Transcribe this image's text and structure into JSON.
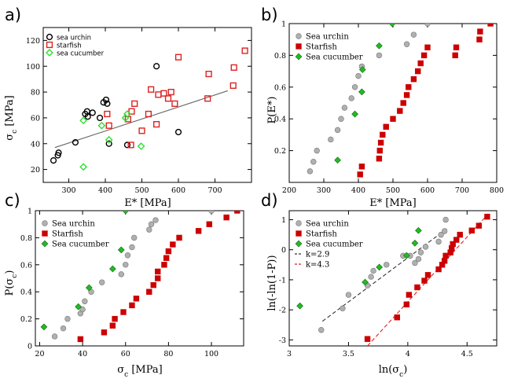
{
  "chart_data": [
    {
      "panel": "a)",
      "type": "scatter",
      "xlabel": "E* [MPa]",
      "ylabel": "σc [MPa]",
      "xlim": [
        230,
        800
      ],
      "ylim": [
        10,
        130
      ],
      "xticks": [
        300,
        400,
        500,
        600,
        700
      ],
      "yticks": [
        20,
        40,
        60,
        80,
        100,
        120
      ],
      "legend_position": "top-left",
      "legend_style": "small",
      "fit_line": {
        "x": [
          262,
          735
        ],
        "y": [
          37,
          81
        ],
        "color": "#666666",
        "dash": false
      },
      "series": [
        {
          "name": "sea urchin",
          "marker": "circle-open",
          "color": "#000000",
          "x": [
            258,
            270,
            272,
            318,
            345,
            350,
            352,
            365,
            385,
            395,
            402,
            405,
            410,
            460,
            540,
            600
          ],
          "y": [
            27,
            31,
            33,
            41,
            63,
            65,
            61,
            64,
            60,
            72,
            74,
            71,
            40,
            39,
            100,
            49
          ]
        },
        {
          "name": "starfish",
          "marker": "square-open",
          "color": "#dd2222",
          "x": [
            405,
            410,
            462,
            470,
            472,
            480,
            500,
            518,
            525,
            540,
            545,
            560,
            572,
            580,
            590,
            600,
            680,
            683,
            750,
            752,
            782
          ],
          "y": [
            63,
            54,
            59,
            39,
            65,
            71,
            50,
            63,
            82,
            55,
            78,
            79,
            75,
            80,
            71,
            107,
            75,
            94,
            85,
            99,
            112
          ]
        },
        {
          "name": "sea cucumber",
          "marker": "diamond-open",
          "color": "#33dd33",
          "x": [
            340,
            340,
            390,
            410,
            455,
            460,
            498
          ],
          "y": [
            22,
            58,
            54,
            43,
            60,
            63,
            38
          ]
        }
      ]
    },
    {
      "panel": "b)",
      "type": "scatter",
      "xlabel": "E* [MPa]",
      "ylabel": "P(E*)",
      "xlim": [
        200,
        800
      ],
      "ylim": [
        0,
        1
      ],
      "xticks": [
        200,
        300,
        400,
        500,
        600,
        700,
        800
      ],
      "yticks": [
        0.2,
        0.4,
        0.6,
        0.8,
        1
      ],
      "legend_position": "top-left",
      "legend_style": "large",
      "series": [
        {
          "name": "Sea urchin",
          "marker": "circle-filled",
          "color": "#b0b0b0",
          "x": [
            260,
            270,
            280,
            320,
            340,
            350,
            360,
            380,
            390,
            400,
            410,
            460,
            540,
            560,
            600
          ],
          "y": [
            0.07,
            0.13,
            0.2,
            0.27,
            0.33,
            0.4,
            0.47,
            0.53,
            0.6,
            0.67,
            0.73,
            0.8,
            0.87,
            0.93,
            1.0
          ]
        },
        {
          "name": "Starfish",
          "marker": "square-filled",
          "color": "#cc0000",
          "x": [
            405,
            410,
            460,
            462,
            465,
            470,
            480,
            500,
            520,
            530,
            540,
            545,
            560,
            572,
            580,
            590,
            600,
            680,
            683,
            750,
            752,
            782
          ],
          "y": [
            0.05,
            0.1,
            0.15,
            0.2,
            0.25,
            0.3,
            0.35,
            0.4,
            0.45,
            0.5,
            0.55,
            0.6,
            0.65,
            0.7,
            0.75,
            0.8,
            0.85,
            0.8,
            0.85,
            0.9,
            0.95,
            1.0
          ]
        },
        {
          "name": "Sea cucumber",
          "marker": "diamond-filled",
          "color": "#22bb22",
          "x": [
            340,
            390,
            410,
            412,
            460,
            498
          ],
          "y": [
            0.14,
            0.43,
            0.57,
            0.71,
            0.86,
            1.0
          ]
        }
      ]
    },
    {
      "panel": "c)",
      "type": "scatter",
      "xlabel": "σc [MPa]",
      "ylabel": "P(σc)",
      "xlim": [
        18,
        115
      ],
      "ylim": [
        0,
        1
      ],
      "xticks": [
        20,
        40,
        60,
        80,
        100
      ],
      "yticks": [
        0,
        0.2,
        0.4,
        0.6,
        0.8,
        1
      ],
      "legend_position": "top-left",
      "legend_style": "large",
      "series": [
        {
          "name": "Sea urchin",
          "marker": "circle-filled",
          "color": "#b0b0b0",
          "x": [
            27,
            31,
            33,
            39,
            40,
            41,
            44,
            49,
            58,
            60,
            61,
            63,
            64,
            71,
            72,
            74,
            100
          ],
          "y": [
            0.07,
            0.13,
            0.2,
            0.24,
            0.27,
            0.33,
            0.4,
            0.47,
            0.53,
            0.6,
            0.67,
            0.73,
            0.8,
            0.86,
            0.9,
            0.93,
            1.0
          ]
        },
        {
          "name": "Starfish",
          "marker": "square-filled",
          "color": "#cc0000",
          "x": [
            39,
            50,
            54,
            55,
            59,
            63,
            65,
            71,
            73,
            75,
            75,
            78,
            79,
            80,
            82,
            85,
            94,
            99,
            107,
            112
          ],
          "y": [
            0.05,
            0.1,
            0.15,
            0.2,
            0.25,
            0.3,
            0.35,
            0.4,
            0.45,
            0.5,
            0.55,
            0.6,
            0.65,
            0.7,
            0.75,
            0.8,
            0.85,
            0.9,
            0.95,
            1.0
          ]
        },
        {
          "name": "Sea cucumber",
          "marker": "diamond-filled",
          "color": "#22bb22",
          "x": [
            22,
            38,
            43,
            54,
            58,
            60
          ],
          "y": [
            0.14,
            0.29,
            0.43,
            0.57,
            0.71,
            1.0
          ]
        }
      ]
    },
    {
      "panel": "d)",
      "type": "scatter",
      "xlabel": "ln(σc)",
      "ylabel": "ln(-ln(1-P))",
      "xlim": [
        3.0,
        4.75
      ],
      "ylim": [
        -3.2,
        1.3
      ],
      "xticks": [
        3,
        3.5,
        4,
        4.5
      ],
      "yticks": [
        -3,
        -2,
        -1,
        0,
        1
      ],
      "legend_position": "top-left",
      "legend_style": "large",
      "lines": [
        {
          "name": "k=2.9",
          "color": "#333333",
          "x": [
            3.28,
            4.33
          ],
          "y": [
            -2.38,
            0.7
          ]
        },
        {
          "name": "k=4.3",
          "color": "#dd2222",
          "x": [
            3.66,
            4.68
          ],
          "y": [
            -3.2,
            1.2
          ]
        }
      ],
      "series": [
        {
          "name": "Sea urchin",
          "marker": "circle-filled",
          "color": "#b0b0b0",
          "x": [
            3.27,
            3.45,
            3.5,
            3.66,
            3.69,
            3.71,
            3.82,
            3.96,
            4.02,
            4.06,
            4.09,
            4.11,
            4.15,
            4.26,
            4.28,
            4.31,
            4.32
          ],
          "y": [
            -2.67,
            -1.95,
            -1.5,
            -1.19,
            -0.9,
            -0.7,
            -0.5,
            -0.2,
            -0.2,
            -0.44,
            -0.31,
            -0.09,
            0.1,
            0.27,
            0.5,
            0.62,
            1.0
          ]
        },
        {
          "name": "Starfish",
          "marker": "square-filled",
          "color": "#cc0000",
          "x": [
            3.66,
            3.91,
            3.99,
            4.01,
            4.08,
            4.14,
            4.17,
            4.26,
            4.29,
            4.31,
            4.32,
            4.36,
            4.37,
            4.38,
            4.41,
            4.44,
            4.54,
            4.6,
            4.67
          ],
          "y": [
            -2.97,
            -2.25,
            -1.82,
            -1.5,
            -1.25,
            -1.03,
            -0.84,
            -0.65,
            -0.5,
            -0.37,
            -0.2,
            -0.09,
            0.05,
            0.19,
            0.33,
            0.5,
            0.64,
            0.8,
            1.1
          ]
        },
        {
          "name": "Sea cucumber",
          "marker": "diamond-filled",
          "color": "#22bb22",
          "x": [
            3.09,
            3.64,
            3.76,
            3.99,
            4.06,
            4.09
          ],
          "y": [
            -1.87,
            -1.08,
            -0.58,
            -0.19,
            0.22,
            0.64
          ]
        }
      ]
    }
  ]
}
